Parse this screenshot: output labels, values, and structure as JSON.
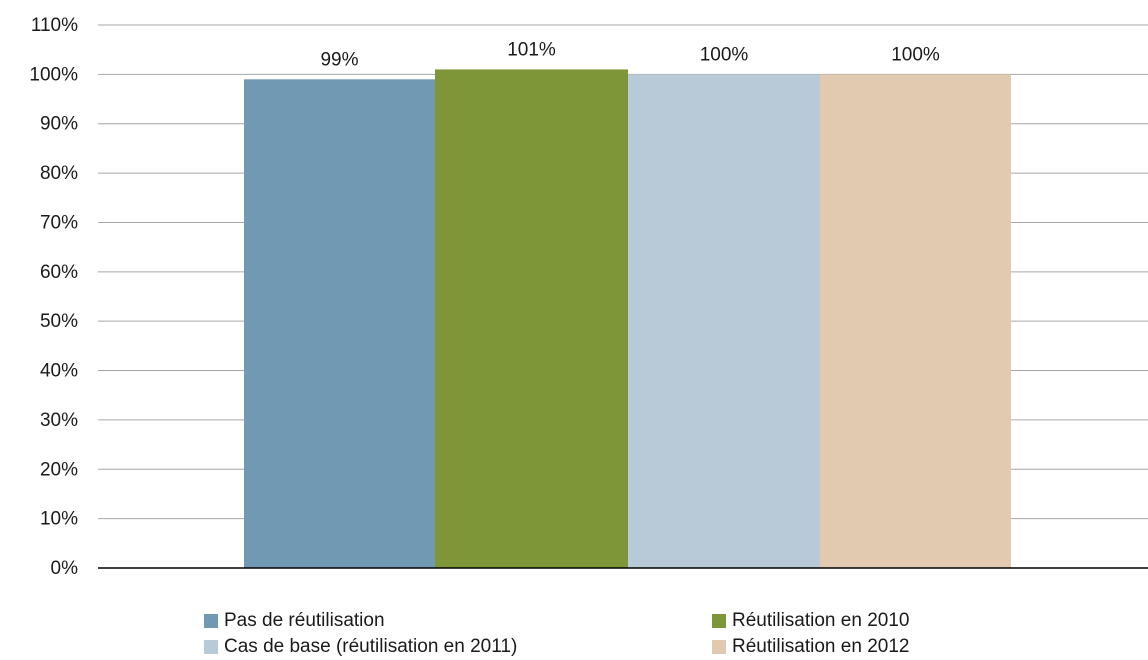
{
  "chart_data": {
    "type": "bar",
    "title": "",
    "xlabel": "",
    "ylabel": "",
    "ylim": [
      0,
      110
    ],
    "yticks": [
      "0%",
      "10%",
      "20%",
      "30%",
      "40%",
      "50%",
      "60%",
      "70%",
      "80%",
      "90%",
      "100%",
      "110%"
    ],
    "grid": true,
    "legend_position": "bottom",
    "series": [
      {
        "name": "Pas de réutilisation",
        "value": 99,
        "label": "99%",
        "color": "#7199b3"
      },
      {
        "name": "Réutilisation en 2010",
        "value": 101,
        "label": "101%",
        "color": "#7e9638"
      },
      {
        "name": "Cas de base (réutilisation en 2011)",
        "value": 100,
        "label": "100%",
        "color": "#b8cad8"
      },
      {
        "name": "Réutilisation en 2012",
        "value": 100,
        "label": "100%",
        "color": "#e2cab1"
      }
    ]
  }
}
